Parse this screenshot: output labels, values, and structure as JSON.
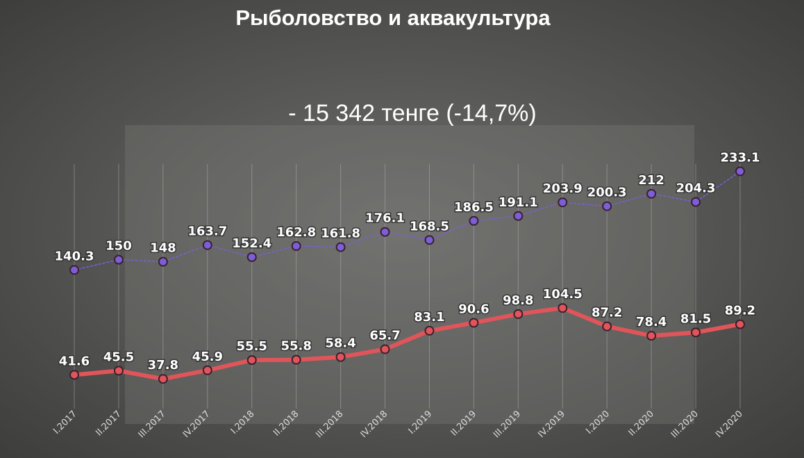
{
  "chart_data": {
    "type": "line",
    "title": "Рыболовство и аквакультура",
    "subtitle": "- 15 342 тенге (-14,7%)",
    "categories": [
      "I.2017",
      "II.2017",
      "III.2017",
      "IV.2017",
      "I.2018",
      "II.2018",
      "III.2018",
      "IV.2018",
      "I.2019",
      "II.2019",
      "III.2019",
      "IV.2019",
      "I.2020",
      "II.2020",
      "III.2020",
      "IV.2020"
    ],
    "series": [
      {
        "color": "#7b5fd6",
        "line_style": "dotted",
        "line_width": 1.5,
        "values": [
          140.3,
          150,
          148,
          163.7,
          152.4,
          162.8,
          161.8,
          176.1,
          168.5,
          186.5,
          191.1,
          203.9,
          200.3,
          212,
          204.3,
          233.1
        ]
      },
      {
        "color": "#e0555a",
        "line_style": "solid",
        "line_width": 6,
        "values": [
          41.6,
          45.5,
          37.8,
          45.9,
          55.5,
          55.8,
          58.4,
          65.7,
          83.1,
          90.6,
          98.8,
          104.5,
          87.2,
          78.4,
          81.5,
          89.2
        ]
      }
    ],
    "ylim": [
      0,
      240
    ],
    "grid": true
  }
}
